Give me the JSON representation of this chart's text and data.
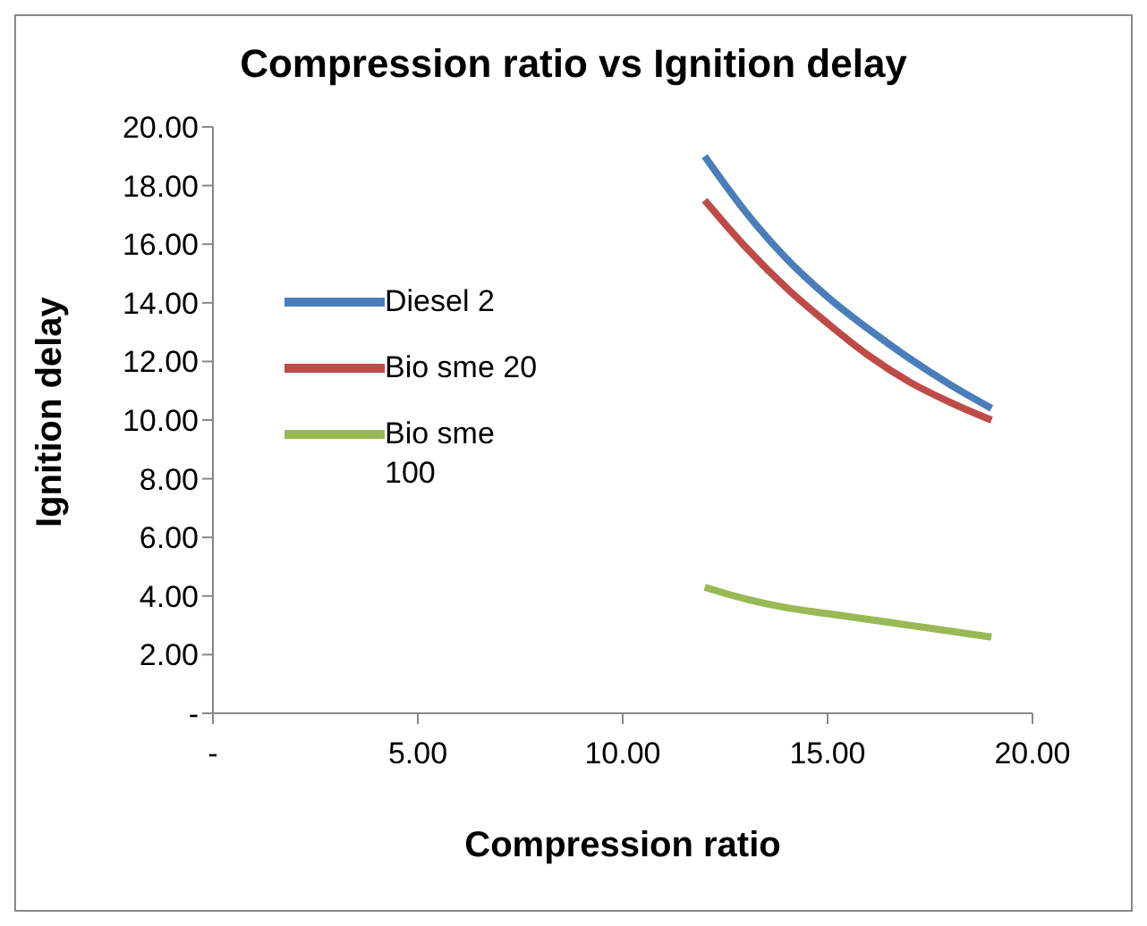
{
  "chart_data": {
    "type": "line",
    "title": "Compression ratio vs Ignition delay",
    "xlabel": "Compression ratio",
    "ylabel": "Ignition delay",
    "x": [
      12,
      13,
      14,
      15,
      16,
      17,
      18,
      19
    ],
    "series": [
      {
        "name": "Diesel 2",
        "color": "#4a7ebb",
        "values": [
          19.0,
          17.1,
          15.5,
          14.2,
          13.1,
          12.1,
          11.2,
          10.4
        ]
      },
      {
        "name": "Bio sme 20",
        "color": "#be4b48",
        "values": [
          17.5,
          15.9,
          14.5,
          13.3,
          12.2,
          11.3,
          10.6,
          10.0
        ]
      },
      {
        "name": "Bio sme 100",
        "color": "#98b954",
        "values": [
          4.3,
          3.9,
          3.6,
          3.4,
          3.2,
          3.0,
          2.8,
          2.6
        ]
      }
    ],
    "xlim": [
      0,
      20
    ],
    "xticks": [
      {
        "value": 0,
        "label": "-"
      },
      {
        "value": 5,
        "label": "5.00"
      },
      {
        "value": 10,
        "label": "10.00"
      },
      {
        "value": 15,
        "label": "15.00"
      },
      {
        "value": 20,
        "label": "20.00"
      }
    ],
    "ylim": [
      0,
      20
    ],
    "yticks": [
      {
        "value": 0,
        "label": "-"
      },
      {
        "value": 2,
        "label": "2.00"
      },
      {
        "value": 4,
        "label": "4.00"
      },
      {
        "value": 6,
        "label": "6.00"
      },
      {
        "value": 8,
        "label": "8.00"
      },
      {
        "value": 10,
        "label": "10.00"
      },
      {
        "value": 12,
        "label": "12.00"
      },
      {
        "value": 14,
        "label": "14.00"
      },
      {
        "value": 16,
        "label": "16.00"
      },
      {
        "value": 18,
        "label": "18.00"
      },
      {
        "value": 20,
        "label": "20.00"
      }
    ],
    "grid": false,
    "legend": "left",
    "marker": "none",
    "line_style": "solid"
  }
}
